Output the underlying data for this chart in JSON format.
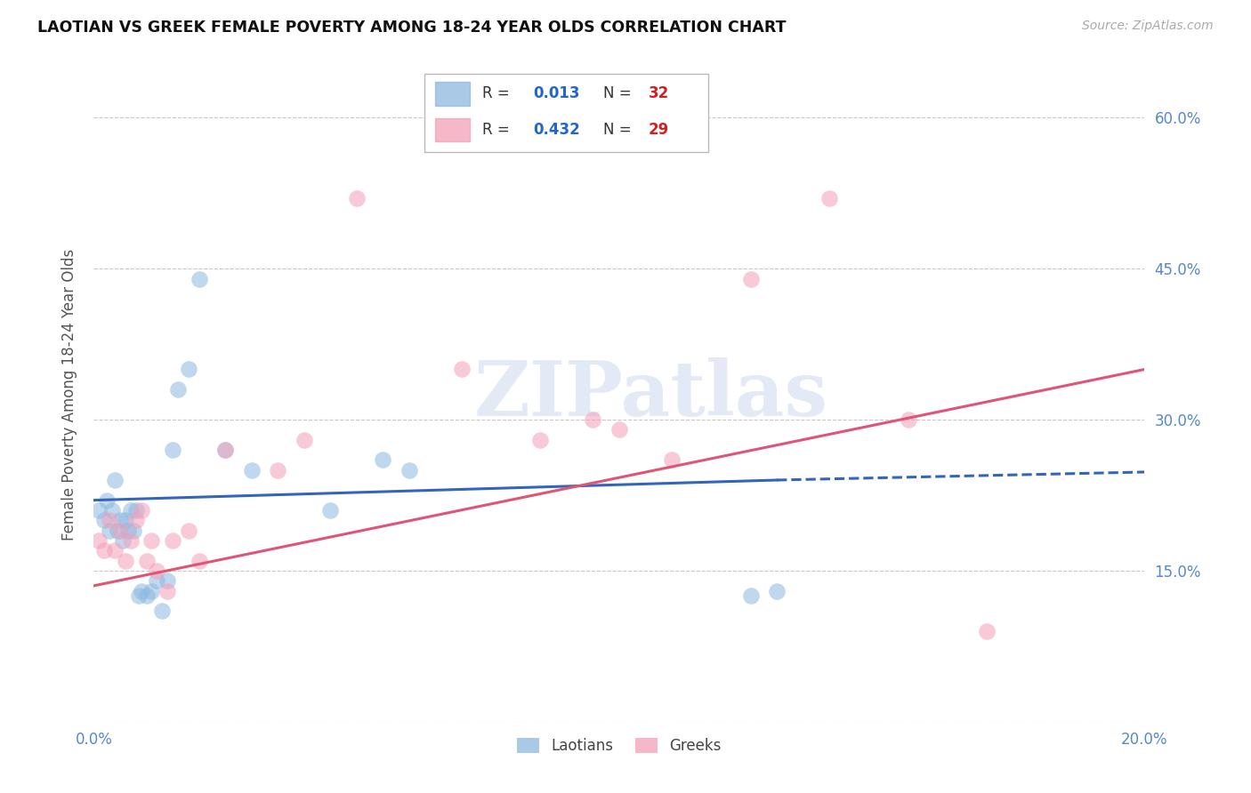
{
  "title": "LAOTIAN VS GREEK FEMALE POVERTY AMONG 18-24 YEAR OLDS CORRELATION CHART",
  "source": "Source: ZipAtlas.com",
  "ylabel": "Female Poverty Among 18-24 Year Olds",
  "xlim": [
    0.0,
    20.0
  ],
  "ylim": [
    0.0,
    65.0
  ],
  "xticks": [
    0.0,
    5.0,
    10.0,
    15.0,
    20.0
  ],
  "xtick_labels": [
    "0.0%",
    "",
    "",
    "",
    "20.0%"
  ],
  "ytick_positions": [
    0.0,
    15.0,
    30.0,
    45.0,
    60.0
  ],
  "ytick_labels_right": [
    "",
    "15.0%",
    "30.0%",
    "45.0%",
    "60.0%"
  ],
  "background_color": "#ffffff",
  "grid_color": "#c8c8c8",
  "blue_scatter_color": "#8db8e0",
  "pink_scatter_color": "#f4a0b8",
  "blue_line_color": "#3366bb",
  "pink_line_color": "#e05575",
  "r_blue": 0.013,
  "n_blue": 32,
  "r_pink": 0.432,
  "n_pink": 29,
  "legend_label_blue": "Laotians",
  "legend_label_pink": "Greeks",
  "watermark": "ZIPatlas",
  "laotian_x": [
    0.1,
    0.2,
    0.25,
    0.3,
    0.35,
    0.4,
    0.45,
    0.5,
    0.55,
    0.6,
    0.65,
    0.7,
    0.75,
    0.8,
    0.85,
    0.9,
    1.0,
    1.1,
    1.2,
    1.3,
    1.4,
    1.5,
    1.6,
    1.8,
    2.0,
    2.5,
    3.0,
    4.5,
    5.5,
    6.0,
    12.5,
    13.0
  ],
  "laotian_y": [
    21.0,
    20.0,
    22.0,
    19.0,
    21.0,
    24.0,
    19.0,
    20.0,
    18.0,
    20.0,
    19.0,
    21.0,
    19.0,
    21.0,
    12.5,
    13.0,
    12.5,
    13.0,
    14.0,
    11.0,
    14.0,
    27.0,
    33.0,
    35.0,
    44.0,
    27.0,
    25.0,
    21.0,
    26.0,
    25.0,
    12.5,
    13.0
  ],
  "greek_x": [
    0.1,
    0.2,
    0.3,
    0.4,
    0.5,
    0.6,
    0.7,
    0.8,
    0.9,
    1.0,
    1.1,
    1.2,
    1.4,
    1.5,
    1.8,
    2.0,
    2.5,
    3.5,
    4.0,
    5.0,
    7.0,
    8.5,
    9.5,
    10.0,
    11.0,
    12.5,
    14.0,
    15.5,
    17.0
  ],
  "greek_y": [
    18.0,
    17.0,
    20.0,
    17.0,
    19.0,
    16.0,
    18.0,
    20.0,
    21.0,
    16.0,
    18.0,
    15.0,
    13.0,
    18.0,
    19.0,
    16.0,
    27.0,
    25.0,
    28.0,
    52.0,
    35.0,
    28.0,
    30.0,
    29.0,
    26.0,
    44.0,
    52.0,
    30.0,
    9.0
  ]
}
